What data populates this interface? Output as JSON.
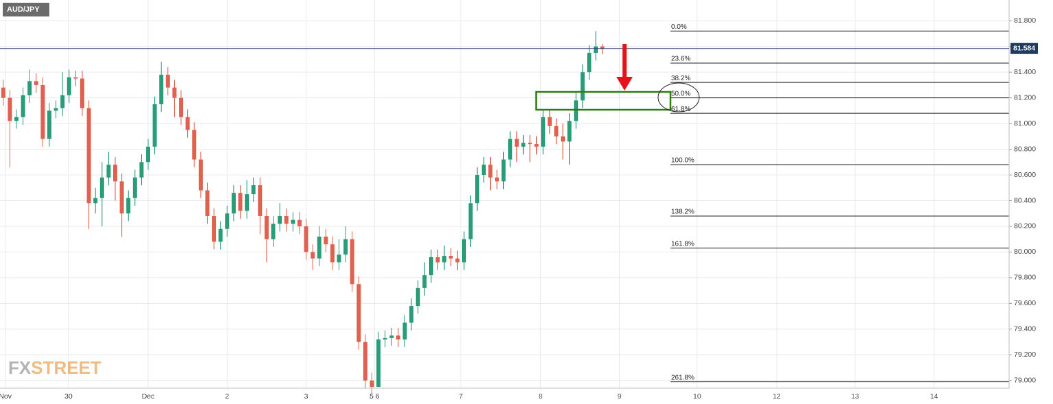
{
  "chart_data": {
    "type": "candlestick",
    "title": "AUD/JPY",
    "watermark": [
      "FX",
      "STREET"
    ],
    "up_color": "#2a9d78",
    "down_color": "#e0614f",
    "grid": true,
    "last_price": 81.584,
    "ylim": [
      78.94,
      81.86
    ],
    "yticks": [
      {
        "value": 81.8,
        "label": "81.800"
      },
      {
        "value": 81.6,
        "label": "81.600"
      },
      {
        "value": 81.4,
        "label": "81.400"
      },
      {
        "value": 81.2,
        "label": "81.200"
      },
      {
        "value": 81.0,
        "label": "81.000"
      },
      {
        "value": 80.8,
        "label": "80.800"
      },
      {
        "value": 80.6,
        "label": "80.600"
      },
      {
        "value": 80.4,
        "label": "80.400"
      },
      {
        "value": 80.2,
        "label": "80.200"
      },
      {
        "value": 80.0,
        "label": "80.000"
      },
      {
        "value": 79.8,
        "label": "79.800"
      },
      {
        "value": 79.6,
        "label": "79.600"
      },
      {
        "value": 79.4,
        "label": "79.400"
      },
      {
        "value": 79.2,
        "label": "79.200"
      },
      {
        "value": 79.0,
        "label": "79.000"
      }
    ],
    "xlim": [
      -0.5,
      152.8
    ],
    "xticks": [
      {
        "value": 0.3,
        "label": "Nov"
      },
      {
        "value": 9.9,
        "label": "30"
      },
      {
        "value": 22,
        "label": "Dec"
      },
      {
        "value": 34,
        "label": "2"
      },
      {
        "value": 46,
        "label": "3"
      },
      {
        "value": 56.4,
        "label": "5 6"
      },
      {
        "value": 69.5,
        "label": "7"
      },
      {
        "value": 81.6,
        "label": "8"
      },
      {
        "value": 93.6,
        "label": "9"
      },
      {
        "value": 105.4,
        "label": "10"
      },
      {
        "value": 117.5,
        "label": "12"
      },
      {
        "value": 129.4,
        "label": "13"
      },
      {
        "value": 141.4,
        "label": "14"
      }
    ],
    "fib_levels": [
      {
        "label": "0.0%",
        "value": 81.72
      },
      {
        "label": "23.6%",
        "value": 81.47
      },
      {
        "label": "38.2%",
        "value": 81.32
      },
      {
        "label": "50.0%",
        "value": 81.2
      },
      {
        "label": "61.8%",
        "value": 81.08
      },
      {
        "label": "100.0%",
        "value": 80.68
      },
      {
        "label": "138.2%",
        "value": 80.28
      },
      {
        "label": "161.8%",
        "value": 80.03
      },
      {
        "label": "261.8%",
        "value": 78.99
      }
    ],
    "open": [
      81.28,
      81.2,
      81.02,
      81.05,
      81.22,
      81.33,
      81.3,
      80.88,
      81.1,
      81.12,
      81.22,
      81.36,
      81.35,
      81.12,
      80.38,
      80.42,
      80.58,
      80.68,
      80.55,
      80.3,
      80.42,
      80.58,
      80.7,
      80.82,
      81.15,
      81.38,
      81.28,
      81.2,
      81.05,
      80.95,
      80.72,
      80.48,
      80.28,
      80.08,
      80.18,
      80.3,
      80.46,
      80.32,
      80.45,
      80.52,
      80.28,
      80.1,
      80.22,
      80.28,
      80.22,
      80.25,
      80.2,
      80.0,
      79.95,
      80.12,
      80.06,
      79.92,
      79.98,
      80.1,
      79.75,
      79.3,
      79.0,
      78.95,
      79.32,
      79.33,
      79.35,
      79.32,
      79.45,
      79.58,
      79.72,
      79.82,
      79.96,
      79.92,
      79.97,
      79.95,
      79.92,
      80.1,
      80.38,
      80.6,
      80.68,
      80.58,
      80.55,
      80.72,
      80.88,
      80.82,
      80.85,
      80.84,
      80.82,
      81.05,
      80.98,
      80.9,
      80.86,
      81.02,
      81.18,
      81.4,
      81.55,
      81.6
    ],
    "high": [
      81.34,
      81.26,
      81.11,
      81.28,
      81.42,
      81.39,
      81.36,
      81.16,
      81.18,
      81.4,
      81.42,
      81.41,
      81.41,
      81.18,
      80.5,
      80.7,
      80.78,
      80.74,
      80.61,
      80.48,
      80.64,
      80.76,
      80.88,
      81.21,
      81.48,
      81.44,
      81.34,
      81.26,
      81.11,
      81.01,
      80.78,
      80.54,
      80.34,
      80.24,
      80.36,
      80.52,
      80.52,
      80.56,
      80.58,
      80.58,
      80.34,
      80.28,
      80.38,
      80.34,
      80.31,
      80.31,
      80.26,
      80.06,
      80.2,
      80.18,
      80.12,
      80.1,
      80.2,
      80.16,
      79.81,
      79.36,
      79.06,
      79.38,
      79.39,
      79.41,
      79.41,
      79.51,
      79.64,
      79.78,
      79.92,
      80.02,
      80.02,
      80.05,
      80.03,
      80.01,
      80.16,
      80.44,
      80.66,
      80.74,
      80.74,
      80.64,
      80.78,
      80.94,
      80.94,
      80.91,
      80.91,
      80.9,
      81.11,
      81.11,
      81.04,
      81.0,
      81.08,
      81.24,
      81.46,
      81.61,
      81.72,
      81.62
    ],
    "low": [
      81.14,
      80.66,
      80.96,
      80.99,
      81.16,
      81.24,
      80.82,
      80.82,
      81.04,
      81.06,
      81.16,
      81.29,
      81.06,
      80.18,
      80.3,
      80.2,
      80.52,
      80.4,
      80.12,
      80.24,
      80.36,
      80.52,
      80.64,
      80.76,
      81.09,
      81.22,
      81.05,
      80.99,
      80.89,
      80.66,
      80.42,
      80.22,
      80.02,
      80.02,
      80.12,
      80.24,
      80.26,
      80.26,
      80.39,
      80.14,
      79.92,
      80.04,
      80.16,
      80.16,
      80.16,
      80.14,
      79.94,
      79.86,
      79.89,
      80.0,
      79.86,
      79.86,
      79.92,
      79.69,
      79.24,
      78.94,
      78.89,
      78.95,
      79.26,
      79.27,
      79.26,
      79.26,
      79.39,
      79.52,
      79.66,
      79.76,
      79.86,
      79.86,
      79.89,
      79.86,
      79.86,
      80.04,
      80.32,
      80.54,
      80.48,
      80.49,
      80.49,
      80.66,
      80.7,
      80.76,
      80.7,
      80.76,
      80.76,
      80.92,
      80.84,
      80.72,
      80.68,
      80.96,
      81.12,
      81.34,
      81.49,
      81.54
    ],
    "close": [
      81.2,
      81.02,
      81.05,
      81.22,
      81.33,
      81.3,
      80.88,
      81.1,
      81.12,
      81.22,
      81.36,
      81.35,
      81.12,
      80.38,
      80.42,
      80.58,
      80.68,
      80.55,
      80.3,
      80.42,
      80.58,
      80.7,
      80.82,
      81.15,
      81.38,
      81.28,
      81.2,
      81.05,
      80.95,
      80.72,
      80.48,
      80.28,
      80.08,
      80.18,
      80.3,
      80.46,
      80.32,
      80.45,
      80.52,
      80.28,
      80.1,
      80.22,
      80.28,
      80.22,
      80.25,
      80.2,
      80.0,
      79.95,
      80.12,
      80.06,
      79.92,
      79.98,
      80.1,
      79.75,
      79.3,
      79.0,
      78.95,
      79.32,
      79.33,
      79.35,
      79.32,
      79.45,
      79.58,
      79.72,
      79.82,
      79.96,
      79.92,
      79.97,
      79.95,
      79.92,
      80.1,
      80.38,
      80.6,
      80.68,
      80.58,
      80.55,
      80.72,
      80.88,
      80.82,
      80.85,
      80.84,
      80.82,
      81.05,
      80.98,
      80.9,
      80.86,
      81.02,
      81.18,
      81.4,
      81.55,
      81.6,
      81.58
    ]
  }
}
